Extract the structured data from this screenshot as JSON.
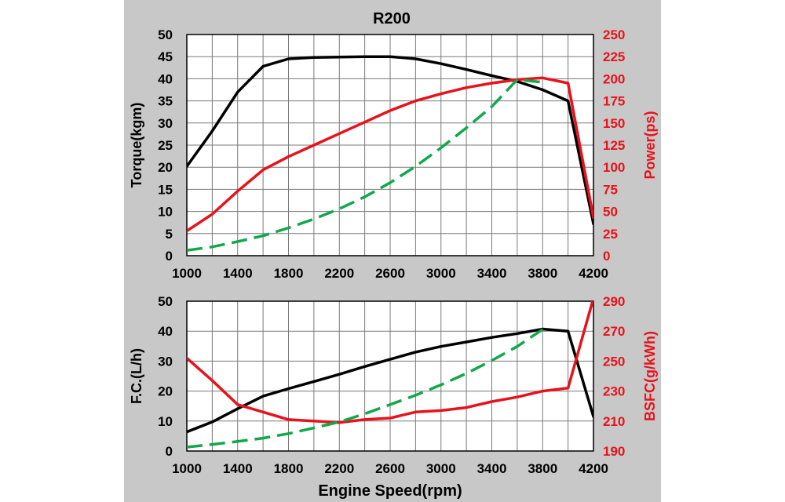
{
  "chart_data": [
    {
      "type": "line",
      "title": "R200",
      "x": [
        1000,
        1200,
        1400,
        1600,
        1800,
        2000,
        2200,
        2400,
        2600,
        2800,
        3000,
        3200,
        3400,
        3600,
        3800,
        4000,
        4200
      ],
      "xticks": [
        "1000",
        "1400",
        "1800",
        "2200",
        "2600",
        "3000",
        "3400",
        "3800",
        "4200"
      ],
      "xlim": [
        1000,
        4200
      ],
      "ylabel": "Torque(kgm)",
      "ylim": [
        0,
        50
      ],
      "yticks": [
        "0",
        "5",
        "10",
        "15",
        "20",
        "25",
        "30",
        "35",
        "40",
        "45",
        "50"
      ],
      "y2label": "Power(ps)",
      "y2lim": [
        0,
        250
      ],
      "y2ticks": [
        "0",
        "25",
        "50",
        "75",
        "100",
        "125",
        "150",
        "175",
        "200",
        "225",
        "250"
      ],
      "grid": true,
      "series": [
        {
          "axis": "left",
          "color": "#000000",
          "dash": false,
          "values": [
            20.2,
            28.2,
            37,
            42.8,
            44.5,
            44.8,
            44.9,
            45,
            45,
            44.5,
            43.4,
            42.1,
            40.7,
            39.4,
            37.5,
            35,
            7.2
          ]
        },
        {
          "axis": "right",
          "color": "#e8121a",
          "dash": false,
          "values": [
            28,
            47,
            73,
            97,
            112,
            125,
            138,
            151,
            164,
            175,
            183,
            190,
            195,
            199,
            201,
            195,
            43
          ]
        },
        {
          "axis": "left",
          "color": "#11a84a",
          "dash": true,
          "x": [
            1000,
            1200,
            1400,
            1600,
            1800,
            2000,
            2200,
            2400,
            2600,
            2800,
            3000,
            3200,
            3400,
            3600,
            3800
          ],
          "values": [
            1.2,
            2,
            3.2,
            4.5,
            6.3,
            8.3,
            10.6,
            13.3,
            16.5,
            20.2,
            24.4,
            28.9,
            33.7,
            39.8,
            39.2
          ]
        }
      ]
    },
    {
      "type": "line",
      "x": [
        1000,
        1200,
        1400,
        1600,
        1800,
        2000,
        2200,
        2400,
        2600,
        2800,
        3000,
        3200,
        3400,
        3600,
        3800,
        4000,
        4200
      ],
      "xticks": [
        "1000",
        "1400",
        "1800",
        "2200",
        "2600",
        "3000",
        "3400",
        "3800",
        "4200"
      ],
      "xlim": [
        1000,
        4200
      ],
      "xlabel": "Engine Speed(rpm)",
      "ylabel": "F.C.(L/h)",
      "ylim": [
        0,
        50
      ],
      "yticks": [
        "0",
        "10",
        "20",
        "30",
        "40",
        "50"
      ],
      "y2label": "BSFC(g/kWh)",
      "y2lim": [
        190,
        290
      ],
      "y2ticks": [
        "190",
        "210",
        "230",
        "250",
        "270",
        "290"
      ],
      "grid": true,
      "series": [
        {
          "axis": "left",
          "color": "#000000",
          "dash": false,
          "values": [
            6.4,
            9.7,
            14.1,
            18.3,
            20.8,
            23.2,
            25.6,
            28.2,
            30.6,
            33,
            34.9,
            36.4,
            37.9,
            39.2,
            40.7,
            40,
            11.5
          ]
        },
        {
          "axis": "right",
          "color": "#e8121a",
          "dash": false,
          "values": [
            252,
            237,
            221,
            216,
            211,
            210,
            209,
            211,
            212,
            216,
            217,
            219,
            223,
            226,
            230,
            232,
            292
          ]
        },
        {
          "axis": "left",
          "color": "#11a84a",
          "dash": true,
          "x": [
            1000,
            1200,
            1400,
            1600,
            1800,
            2000,
            2200,
            2400,
            2600,
            2800,
            3000,
            3200,
            3400,
            3600,
            3800
          ],
          "values": [
            1.3,
            2.2,
            3.2,
            4.3,
            5.8,
            7.7,
            9.7,
            12.4,
            15.5,
            18.6,
            22.1,
            25.9,
            30.2,
            34.9,
            40.6
          ]
        }
      ]
    }
  ]
}
